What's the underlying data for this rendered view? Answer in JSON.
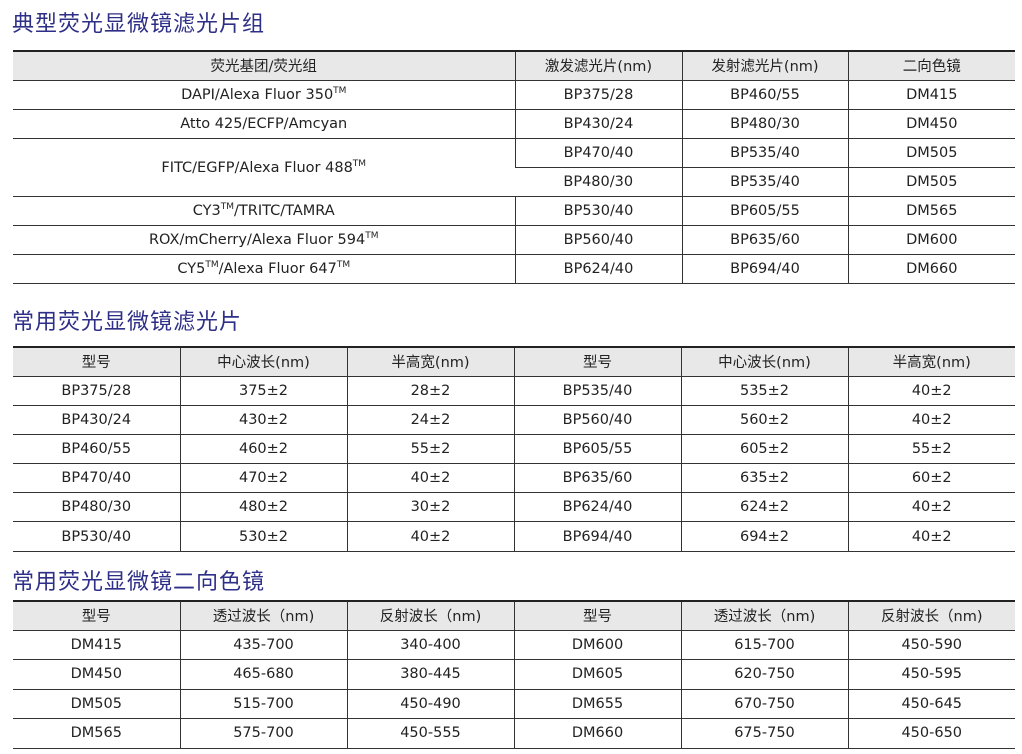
{
  "filter_sets": {
    "title": "典型荧光显微镜滤光片组",
    "headers": [
      "荧光基团/荧光组",
      "激发滤光片(nm)",
      "发射滤光片(nm)",
      "二向色镜"
    ],
    "rows": [
      {
        "fluor": "DAPI/Alexa Fluor 350",
        "tm": "TM",
        "sets": [
          [
            "BP375/28",
            "BP460/55",
            "DM415"
          ]
        ]
      },
      {
        "fluor": "Atto 425/ECFP/Amcyan",
        "tm": "",
        "sets": [
          [
            "BP430/24",
            "BP480/30",
            "DM450"
          ]
        ]
      },
      {
        "fluor": "FITC/EGFP/Alexa Fluor 488",
        "tm": "TM",
        "sets": [
          [
            "BP470/40",
            "BP535/40",
            "DM505"
          ],
          [
            "BP480/30",
            "BP535/40",
            "DM505"
          ]
        ]
      },
      {
        "fluor_parts": [
          "CY3",
          "TM",
          "/TRITC/TAMRA"
        ],
        "sets": [
          [
            "BP530/40",
            "BP605/55",
            "DM565"
          ]
        ]
      },
      {
        "fluor": "ROX/mCherry/Alexa Fluor 594",
        "tm": "TM",
        "sets": [
          [
            "BP560/40",
            "BP635/60",
            "DM600"
          ]
        ]
      },
      {
        "fluor_parts": [
          "CY5",
          "TM",
          "/Alexa Fluor 647",
          "TM"
        ],
        "sets": [
          [
            "BP624/40",
            "BP694/40",
            "DM660"
          ]
        ]
      }
    ]
  },
  "filters": {
    "title": "常用荧光显微镜滤光片",
    "headers": [
      "型号",
      "中心波长(nm)",
      "半高宽(nm)",
      "型号",
      "中心波长(nm)",
      "半高宽(nm)"
    ],
    "rows": [
      [
        "BP375/28",
        "375±2",
        "28±2",
        "BP535/40",
        "535±2",
        "40±2"
      ],
      [
        "BP430/24",
        "430±2",
        "24±2",
        "BP560/40",
        "560±2",
        "40±2"
      ],
      [
        "BP460/55",
        "460±2",
        "55±2",
        "BP605/55",
        "605±2",
        "55±2"
      ],
      [
        "BP470/40",
        "470±2",
        "40±2",
        "BP635/60",
        "635±2",
        "60±2"
      ],
      [
        "BP480/30",
        "480±2",
        "30±2",
        "BP624/40",
        "624±2",
        "40±2"
      ],
      [
        "BP530/40",
        "530±2",
        "40±2",
        "BP694/40",
        "694±2",
        "40±2"
      ]
    ]
  },
  "dichroics": {
    "title": "常用荧光显微镜二向色镜",
    "headers": [
      "型号",
      "透过波长（nm)",
      "反射波长（nm)",
      "型号",
      "透过波长（nm)",
      "反射波长（nm)"
    ],
    "rows": [
      [
        "DM415",
        "435-700",
        "340-400",
        "DM600",
        "615-700",
        "450-590"
      ],
      [
        "DM450",
        "465-680",
        "380-445",
        "DM605",
        "620-750",
        "450-595"
      ],
      [
        "DM505",
        "515-700",
        "450-490",
        "DM655",
        "670-750",
        "450-645"
      ],
      [
        "DM565",
        "575-700",
        "450-555",
        "DM660",
        "675-750",
        "450-650"
      ]
    ]
  }
}
